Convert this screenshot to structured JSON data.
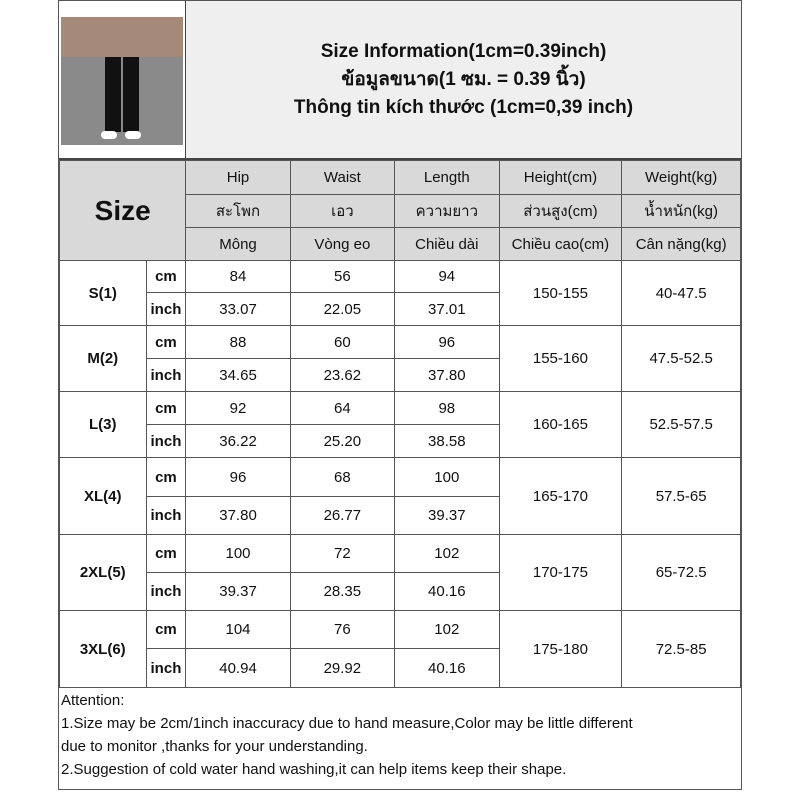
{
  "title": {
    "en": "Size Information(1cm=0.39inch)",
    "th": "ข้อมูลขนาด(1 ซม. = 0.39 นิ้ว)",
    "vi": "Thông tin kích thước (1cm=0,39 inch)"
  },
  "size_label": "Size",
  "headers": [
    [
      "Hip",
      "Waist",
      "Length",
      "Height(cm)",
      "Weight(kg)"
    ],
    [
      "สะโพก",
      "เอว",
      "ความยาว",
      "ส่วนสูง(cm)",
      "น้ำหนัก(kg)"
    ],
    [
      "Mông",
      "Vòng eo",
      "Chiều dài",
      "Chiều cao(cm)",
      "Cân nặng(kg)"
    ]
  ],
  "unit_cm": "cm",
  "unit_inch": "inch",
  "rows": [
    {
      "size": "S(1)",
      "cm": [
        "84",
        "56",
        "94"
      ],
      "inch": [
        "33.07",
        "22.05",
        "37.01"
      ],
      "height": "150-155",
      "weight": "40-47.5"
    },
    {
      "size": "M(2)",
      "cm": [
        "88",
        "60",
        "96"
      ],
      "inch": [
        "34.65",
        "23.62",
        "37.80"
      ],
      "height": "155-160",
      "weight": "47.5-52.5"
    },
    {
      "size": "L(3)",
      "cm": [
        "92",
        "64",
        "98"
      ],
      "inch": [
        "36.22",
        "25.20",
        "38.58"
      ],
      "height": "160-165",
      "weight": "52.5-57.5"
    },
    {
      "size": "XL(4)",
      "cm": [
        "96",
        "68",
        "100"
      ],
      "inch": [
        "37.80",
        "26.77",
        "39.37"
      ],
      "height": "165-170",
      "weight": "57.5-65"
    },
    {
      "size": "2XL(5)",
      "cm": [
        "100",
        "72",
        "102"
      ],
      "inch": [
        "39.37",
        "28.35",
        "40.16"
      ],
      "height": "170-175",
      "weight": "65-72.5"
    },
    {
      "size": "3XL(6)",
      "cm": [
        "104",
        "76",
        "102"
      ],
      "inch": [
        "40.94",
        "29.92",
        "40.16"
      ],
      "height": "175-180",
      "weight": "72.5-85"
    }
  ],
  "footer": [
    "Attention:",
    "1.Size may be 2cm/1inch inaccuracy due to hand measure,Color may be little different",
    "due to monitor ,thanks for your understanding.",
    "2.Suggestion of cold water hand washing,it can help items keep their shape."
  ]
}
